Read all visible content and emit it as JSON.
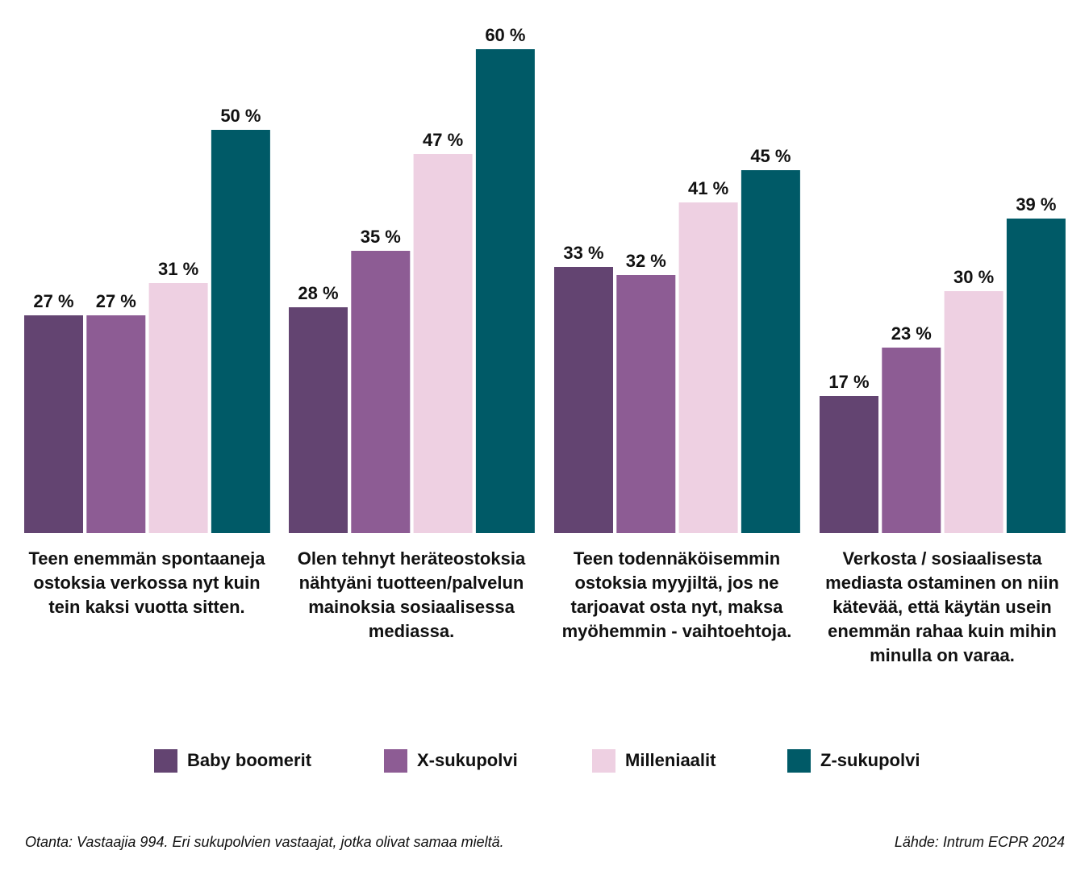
{
  "chart_data": {
    "type": "bar",
    "title": "",
    "xlabel": "",
    "ylabel": "",
    "ylim": [
      0,
      60
    ],
    "grid": false,
    "value_suffix": " %",
    "categories": [
      "Teen enemmän spontaaneja ostoksia verkossa nyt kuin tein kaksi vuotta sitten.",
      "Olen tehnyt heräteostoksia nähtyäni tuotteen/palvelun mainoksia sosiaalisessa mediassa.",
      "Teen todennäköisemmin ostoksia myyjiltä, jos ne tarjoavat osta nyt, maksa myöhemmin -vaihtoehtoja.",
      "Verkosta / sosiaalisesta mediasta ostaminen on niin kätevää, että käytän usein enemmän rahaa kuin mihin minulla on varaa."
    ],
    "series": [
      {
        "name": "Baby boomerit",
        "color": "#634471",
        "values": [
          27,
          28,
          33,
          17
        ]
      },
      {
        "name": "X-sukupolvi",
        "color": "#8d5c94",
        "values": [
          27,
          35,
          32,
          23
        ]
      },
      {
        "name": "Milleniaalit",
        "color": "#eed0e2",
        "values": [
          31,
          47,
          41,
          30
        ]
      },
      {
        "name": "Z-sukupolvi",
        "color": "#005a67",
        "values": [
          50,
          60,
          45,
          39
        ]
      }
    ],
    "legend_position": "bottom"
  },
  "category_labels": [
    "Teen enemmän spontaaneja ostoksia verkossa nyt kuin tein kaksi vuotta sitten.",
    "Olen tehnyt heräteostoksia nähtyäni tuotteen/palvelun mainoksia sosiaalisessa mediassa.",
    "Teen todennäköisemmin ostoksia myyjiltä, jos ne tarjoavat osta nyt, maksa myöhemmin - vaihtoehtoja.",
    "Verkosta / sosiaalisesta mediasta ostaminen on niin kätevää, että käytän usein enemmän rahaa kuin mihin minulla on varaa."
  ],
  "legend": [
    {
      "label": "Baby boomerit",
      "color": "#634471"
    },
    {
      "label": "X-sukupolvi",
      "color": "#8d5c94"
    },
    {
      "label": "Milleniaalit",
      "color": "#eed0e2"
    },
    {
      "label": "Z-sukupolvi",
      "color": "#005a67"
    }
  ],
  "footer": {
    "note": "Otanta: Vastaajia 994. Eri sukupolvien vastaajat, jotka olivat samaa mieltä.",
    "source": "Lähde: Intrum ECPR 2024"
  }
}
